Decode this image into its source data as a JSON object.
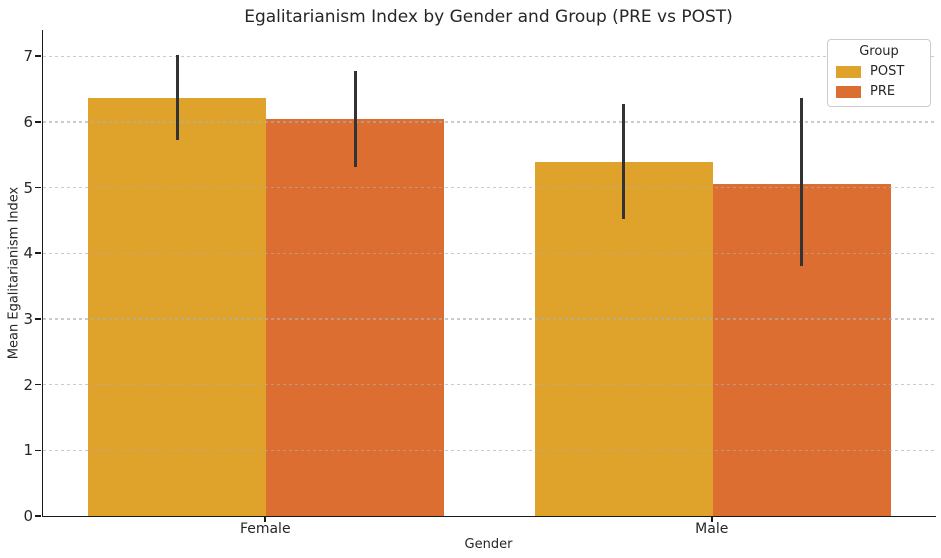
{
  "chart_data": {
    "type": "bar",
    "title": "Egalitarianism Index by Gender and Group (PRE vs POST)",
    "xlabel": "Gender",
    "ylabel": "Mean Egalitarianism Index",
    "categories": [
      "Female",
      "Male"
    ],
    "series": [
      {
        "name": "POST",
        "color": "#dfa32b",
        "values": [
          6.37,
          5.39
        ],
        "errors_low": [
          5.73,
          4.52
        ],
        "errors_high": [
          7.02,
          6.28
        ]
      },
      {
        "name": "PRE",
        "color": "#dc6e32",
        "values": [
          6.04,
          5.06
        ],
        "errors_low": [
          5.32,
          3.8
        ],
        "errors_high": [
          6.78,
          6.36
        ]
      }
    ],
    "ylim": [
      0,
      7.4
    ],
    "yticks": [
      0,
      1,
      2,
      3,
      4,
      5,
      6,
      7
    ],
    "grid": "horizontal dashed",
    "error_bar_color": "#333333",
    "legend": {
      "title": "Group",
      "position": "upper right",
      "entries": [
        "POST",
        "PRE"
      ]
    }
  }
}
